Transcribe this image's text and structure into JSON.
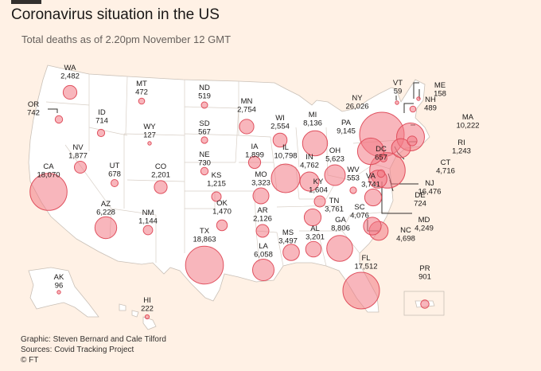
{
  "header": {
    "title": "Coronavirus situation in the US",
    "subtitle": "Total deaths as of 2.20pm November 12 GMT"
  },
  "footer": {
    "graphic": "Graphic: Steven Bernard and Cale Tilford",
    "sources": "Sources: Covid Tracking Project",
    "brand": "© FT"
  },
  "colors": {
    "background": "#fff1e5",
    "bubble": "#f27a85",
    "land": "#ffffff"
  },
  "states": [
    {
      "code": "WA",
      "deaths": "2,482"
    },
    {
      "code": "OR",
      "deaths": "742"
    },
    {
      "code": "CA",
      "deaths": "18,070"
    },
    {
      "code": "NV",
      "deaths": "1,877"
    },
    {
      "code": "ID",
      "deaths": "714"
    },
    {
      "code": "MT",
      "deaths": "472"
    },
    {
      "code": "WY",
      "deaths": "127"
    },
    {
      "code": "UT",
      "deaths": "678"
    },
    {
      "code": "AZ",
      "deaths": "6,228"
    },
    {
      "code": "CO",
      "deaths": "2,201"
    },
    {
      "code": "NM",
      "deaths": "1,144"
    },
    {
      "code": "ND",
      "deaths": "519"
    },
    {
      "code": "SD",
      "deaths": "567"
    },
    {
      "code": "NE",
      "deaths": "730"
    },
    {
      "code": "KS",
      "deaths": "1,215"
    },
    {
      "code": "OK",
      "deaths": "1,470"
    },
    {
      "code": "TX",
      "deaths": "18,863"
    },
    {
      "code": "MN",
      "deaths": "2,754"
    },
    {
      "code": "IA",
      "deaths": "1,899"
    },
    {
      "code": "MO",
      "deaths": "3,323"
    },
    {
      "code": "AR",
      "deaths": "2,126"
    },
    {
      "code": "LA",
      "deaths": "6,058"
    },
    {
      "code": "WI",
      "deaths": "2,554"
    },
    {
      "code": "IL",
      "deaths": "10,798"
    },
    {
      "code": "MI",
      "deaths": "8,136"
    },
    {
      "code": "IN",
      "deaths": "4,762"
    },
    {
      "code": "OH",
      "deaths": "5,623"
    },
    {
      "code": "KY",
      "deaths": "1,604"
    },
    {
      "code": "TN",
      "deaths": "3,761"
    },
    {
      "code": "MS",
      "deaths": "3,497"
    },
    {
      "code": "AL",
      "deaths": "3,201"
    },
    {
      "code": "GA",
      "deaths": "8,806"
    },
    {
      "code": "FL",
      "deaths": "17,512"
    },
    {
      "code": "SC",
      "deaths": "4,076"
    },
    {
      "code": "NC",
      "deaths": "4,698"
    },
    {
      "code": "VA",
      "deaths": "3,741"
    },
    {
      "code": "WV",
      "deaths": "553"
    },
    {
      "code": "PA",
      "deaths": "9,145"
    },
    {
      "code": "NY",
      "deaths": "26,026"
    },
    {
      "code": "VT",
      "deaths": "59"
    },
    {
      "code": "NH",
      "deaths": "489"
    },
    {
      "code": "ME",
      "deaths": "158"
    },
    {
      "code": "MA",
      "deaths": "10,222"
    },
    {
      "code": "RI",
      "deaths": "1,243"
    },
    {
      "code": "CT",
      "deaths": "4,716"
    },
    {
      "code": "NJ",
      "deaths": "16,476"
    },
    {
      "code": "DE",
      "deaths": "724"
    },
    {
      "code": "MD",
      "deaths": "4,249"
    },
    {
      "code": "DC",
      "deaths": "657"
    },
    {
      "code": "AK",
      "deaths": "96"
    },
    {
      "code": "HI",
      "deaths": "222"
    },
    {
      "code": "PR",
      "deaths": "901"
    }
  ]
}
